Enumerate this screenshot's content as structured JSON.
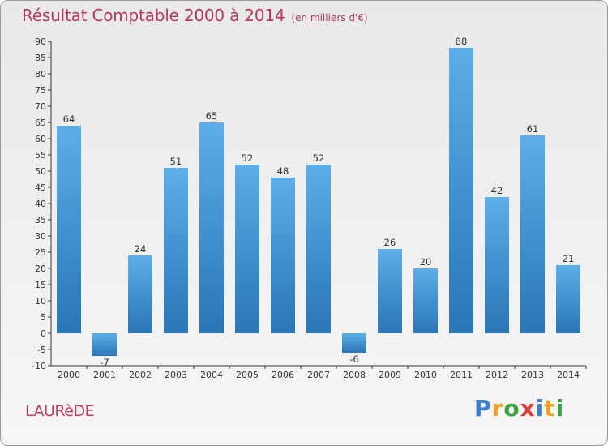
{
  "chart_data": {
    "type": "bar",
    "title": "Résultat Comptable 2000 à 2014",
    "subtitle": "(en milliers d'€)",
    "categories": [
      "2000",
      "2001",
      "2002",
      "2003",
      "2004",
      "2005",
      "2006",
      "2007",
      "2008",
      "2009",
      "2010",
      "2011",
      "2012",
      "2013",
      "2014"
    ],
    "values": [
      64,
      -7,
      24,
      51,
      65,
      52,
      48,
      52,
      -6,
      26,
      20,
      88,
      42,
      61,
      21
    ],
    "ylim": [
      -10,
      90
    ],
    "yticks": [
      -10,
      -5,
      0,
      5,
      10,
      15,
      20,
      25,
      30,
      35,
      40,
      45,
      50,
      55,
      60,
      65,
      70,
      75,
      80,
      85,
      90
    ],
    "xlabel": "",
    "ylabel": "",
    "grid": false,
    "colors": {
      "bar_light": "#5caee8",
      "bar_dark": "#2a75b6",
      "title": "#b23a5a"
    }
  },
  "commune": "LAURèDE",
  "logo": {
    "letters": [
      "P",
      "r",
      "o",
      "x",
      "i",
      "t",
      "i"
    ],
    "colors": [
      "#3a7fd0",
      "#f0a020",
      "#3aa040",
      "#e03a3a",
      "#3a7fd0",
      "#f0a020",
      "#3aa040"
    ]
  }
}
